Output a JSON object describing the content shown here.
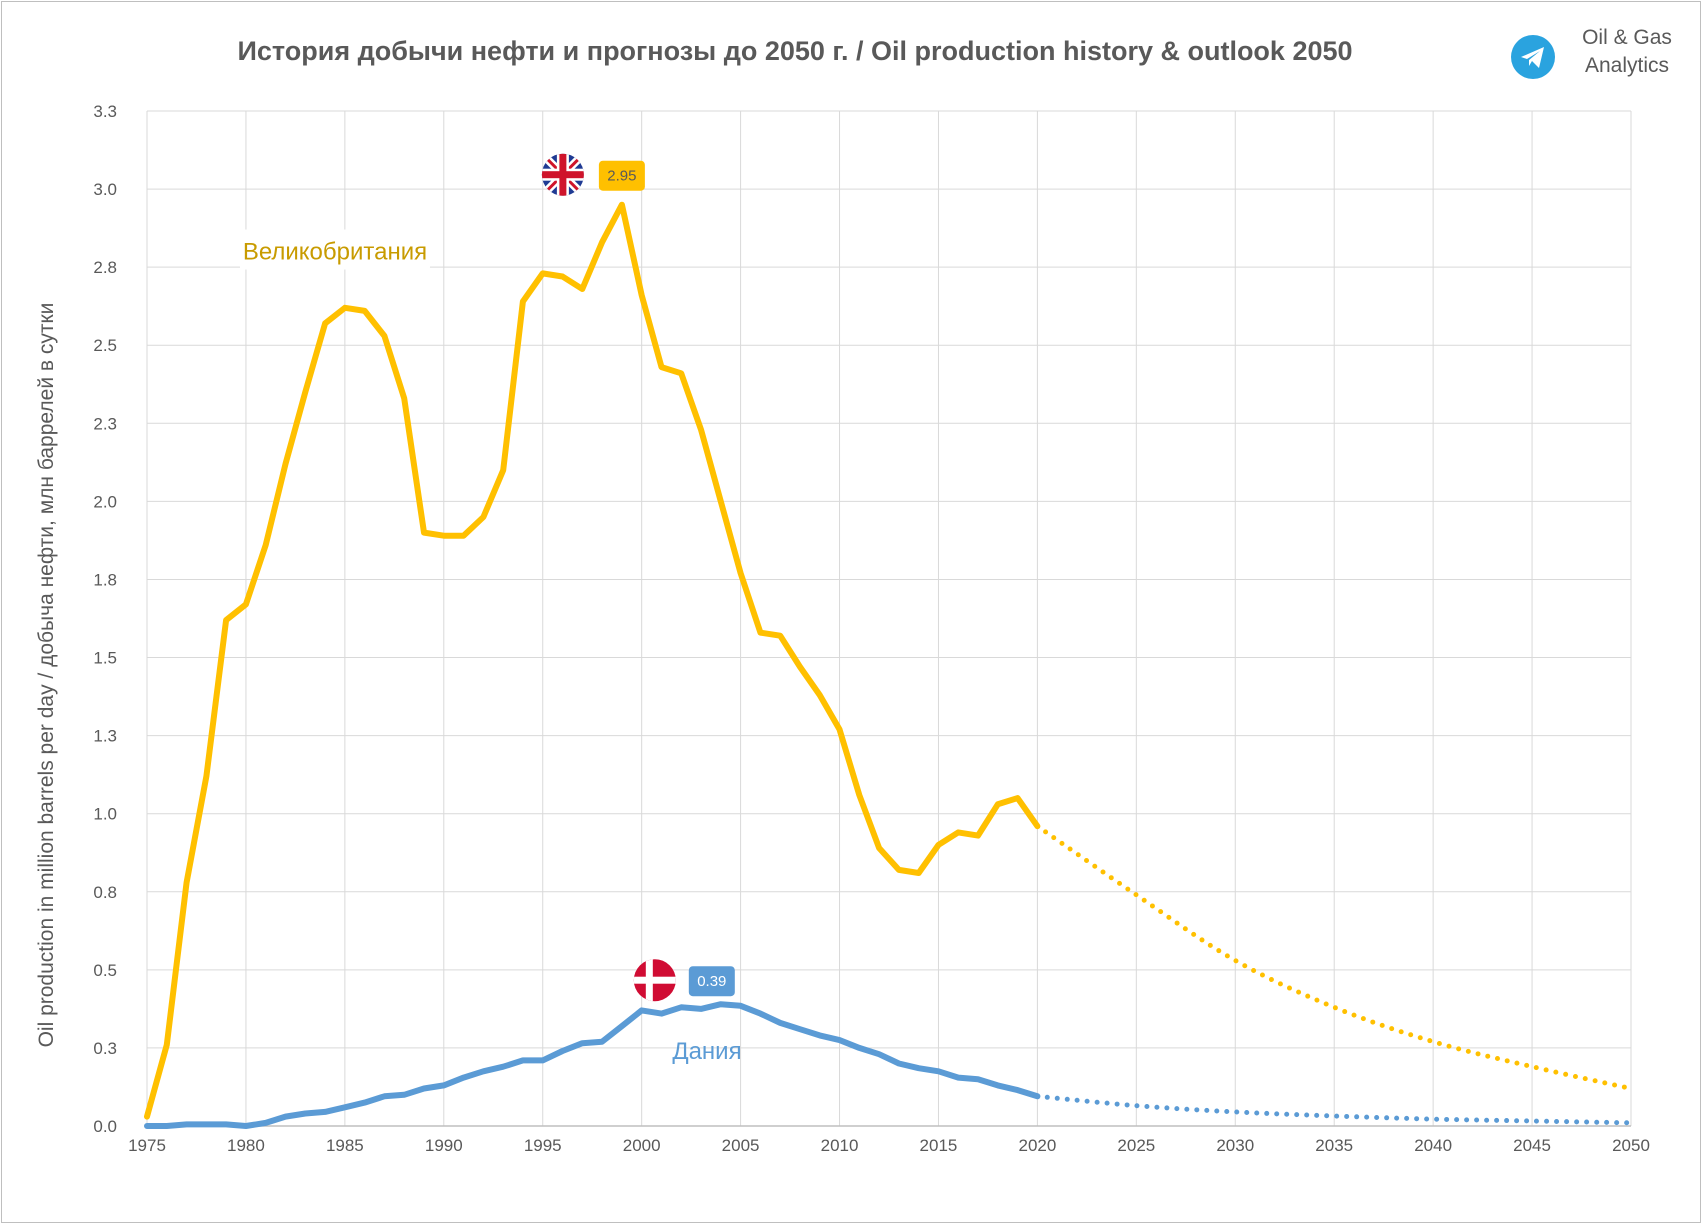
{
  "header": {
    "title": "История добычи нефти и прогнозы до 2050 г. / Oil production history & outlook 2050",
    "brand_line1": "Oil & Gas",
    "brand_line2": "Analytics",
    "brand_icon": "telegram-icon"
  },
  "chart_data": {
    "type": "line",
    "title": "История добычи нефти и прогнозы до 2050 г. / Oil production history & outlook 2050",
    "ylabel": "Oil production in million barrels per day / добыча нефти, млн баррелей в сутки",
    "xlabel": "",
    "xlim": [
      1975,
      2050
    ],
    "ylim": [
      0,
      3.25
    ],
    "x_ticks": [
      1975,
      1980,
      1985,
      1990,
      1995,
      2000,
      2005,
      2010,
      2015,
      2020,
      2025,
      2030,
      2035,
      2040,
      2045,
      2050
    ],
    "y_ticks": [
      0.0,
      0.25,
      0.5,
      0.75,
      1.0,
      1.25,
      1.5,
      1.75,
      2.0,
      2.25,
      2.5,
      2.75,
      3.0,
      3.25
    ],
    "y_tick_labels": [
      "0.0",
      "0.3",
      "0.5",
      "0.8",
      "1.0",
      "1.3",
      "1.5",
      "1.8",
      "2.0",
      "2.3",
      "2.5",
      "2.8",
      "3.0",
      "3.3"
    ],
    "grid": true,
    "series": [
      {
        "name": "Великобритания",
        "color": "#FFC000",
        "label_color": "#C89B00",
        "peak_label": "2.95",
        "peak_year": 1999,
        "flag_icon": "uk-flag-icon",
        "history": [
          [
            1975,
            0.03
          ],
          [
            1976,
            0.26
          ],
          [
            1977,
            0.78
          ],
          [
            1978,
            1.12
          ],
          [
            1979,
            1.62
          ],
          [
            1980,
            1.67
          ],
          [
            1981,
            1.86
          ],
          [
            1982,
            2.12
          ],
          [
            1983,
            2.35
          ],
          [
            1984,
            2.57
          ],
          [
            1985,
            2.62
          ],
          [
            1986,
            2.61
          ],
          [
            1987,
            2.53
          ],
          [
            1988,
            2.33
          ],
          [
            1989,
            1.9
          ],
          [
            1990,
            1.89
          ],
          [
            1991,
            1.89
          ],
          [
            1992,
            1.95
          ],
          [
            1993,
            2.1
          ],
          [
            1994,
            2.64
          ],
          [
            1995,
            2.73
          ],
          [
            1996,
            2.72
          ],
          [
            1997,
            2.68
          ],
          [
            1998,
            2.83
          ],
          [
            1999,
            2.95
          ],
          [
            2000,
            2.66
          ],
          [
            2001,
            2.43
          ],
          [
            2002,
            2.41
          ],
          [
            2003,
            2.23
          ],
          [
            2004,
            2.0
          ],
          [
            2005,
            1.77
          ],
          [
            2006,
            1.58
          ],
          [
            2007,
            1.57
          ],
          [
            2008,
            1.47
          ],
          [
            2009,
            1.38
          ],
          [
            2010,
            1.27
          ],
          [
            2011,
            1.06
          ],
          [
            2012,
            0.89
          ],
          [
            2013,
            0.82
          ],
          [
            2014,
            0.81
          ],
          [
            2015,
            0.9
          ],
          [
            2016,
            0.94
          ],
          [
            2017,
            0.93
          ],
          [
            2018,
            1.03
          ],
          [
            2019,
            1.05
          ],
          [
            2020,
            0.96
          ]
        ],
        "forecast": [
          [
            2020,
            0.96
          ],
          [
            2025,
            0.74
          ],
          [
            2030,
            0.53
          ],
          [
            2035,
            0.38
          ],
          [
            2040,
            0.27
          ],
          [
            2045,
            0.19
          ],
          [
            2050,
            0.12
          ]
        ]
      },
      {
        "name": "Дания",
        "color": "#5B9BD5",
        "label_color": "#5B9BD5",
        "peak_label": "0.39",
        "peak_year": 2004,
        "flag_icon": "denmark-flag-icon",
        "history": [
          [
            1975,
            0.0
          ],
          [
            1976,
            0.0
          ],
          [
            1977,
            0.005
          ],
          [
            1978,
            0.005
          ],
          [
            1979,
            0.005
          ],
          [
            1980,
            0.0
          ],
          [
            1981,
            0.01
          ],
          [
            1982,
            0.03
          ],
          [
            1983,
            0.04
          ],
          [
            1984,
            0.045
          ],
          [
            1985,
            0.06
          ],
          [
            1986,
            0.075
          ],
          [
            1987,
            0.095
          ],
          [
            1988,
            0.1
          ],
          [
            1989,
            0.12
          ],
          [
            1990,
            0.13
          ],
          [
            1991,
            0.155
          ],
          [
            1992,
            0.175
          ],
          [
            1993,
            0.19
          ],
          [
            1994,
            0.21
          ],
          [
            1995,
            0.21
          ],
          [
            1996,
            0.24
          ],
          [
            1997,
            0.265
          ],
          [
            1998,
            0.27
          ],
          [
            1999,
            0.32
          ],
          [
            2000,
            0.37
          ],
          [
            2001,
            0.36
          ],
          [
            2002,
            0.38
          ],
          [
            2003,
            0.375
          ],
          [
            2004,
            0.39
          ],
          [
            2005,
            0.385
          ],
          [
            2006,
            0.36
          ],
          [
            2007,
            0.33
          ],
          [
            2008,
            0.31
          ],
          [
            2009,
            0.29
          ],
          [
            2010,
            0.275
          ],
          [
            2011,
            0.25
          ],
          [
            2012,
            0.23
          ],
          [
            2013,
            0.2
          ],
          [
            2014,
            0.185
          ],
          [
            2015,
            0.175
          ],
          [
            2016,
            0.155
          ],
          [
            2017,
            0.15
          ],
          [
            2018,
            0.13
          ],
          [
            2019,
            0.115
          ],
          [
            2020,
            0.095
          ]
        ],
        "forecast": [
          [
            2020,
            0.095
          ],
          [
            2025,
            0.065
          ],
          [
            2030,
            0.045
          ],
          [
            2035,
            0.032
          ],
          [
            2040,
            0.022
          ],
          [
            2045,
            0.016
          ],
          [
            2050,
            0.01
          ]
        ]
      }
    ]
  }
}
